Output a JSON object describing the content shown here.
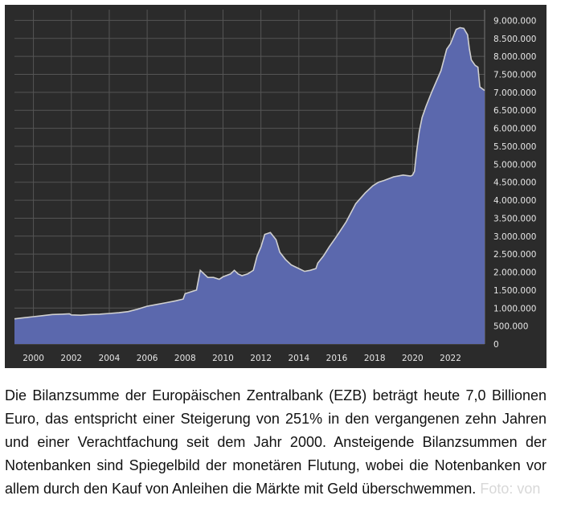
{
  "chart_data": {
    "type": "area",
    "title": "",
    "xlabel": "",
    "ylabel": "",
    "xlim": [
      1999.0,
      2023.8
    ],
    "ylim": [
      0,
      9300000
    ],
    "x_ticks": [
      "2000",
      "2002",
      "2004",
      "2006",
      "2008",
      "2010",
      "2012",
      "2014",
      "2016",
      "2018",
      "2020",
      "2022"
    ],
    "y_ticks": [
      "0",
      "500.000",
      "1.000.000",
      "1.500.000",
      "2.000.000",
      "2.500.000",
      "3.000.000",
      "3.500.000",
      "4.000.000",
      "4.500.000",
      "5.000.000",
      "5.500.000",
      "6.000.000",
      "6.500.000",
      "7.000.000",
      "7.500.000",
      "8.000.000",
      "8.500.000",
      "9.000.000"
    ],
    "grid": true,
    "y_axis_side": "right",
    "colors": {
      "background": "#2b2b2b",
      "fill": "#5b68ad",
      "line": "#d0d0d0",
      "grid": "#555555"
    },
    "series": [
      {
        "x": [
          1999.0,
          1999.5,
          2000.0,
          2000.5,
          2001.0,
          2001.5,
          2001.9,
          2002.0,
          2002.5,
          2003.0,
          2003.5,
          2004.0,
          2004.5,
          2005.0,
          2005.5,
          2006.0,
          2006.5,
          2007.0,
          2007.5,
          2007.9,
          2008.0,
          2008.3,
          2008.6,
          2008.8,
          2009.0,
          2009.2,
          2009.5,
          2009.8,
          2010.0,
          2010.4,
          2010.6,
          2010.8,
          2011.0,
          2011.3,
          2011.6,
          2011.8,
          2012.0,
          2012.2,
          2012.5,
          2012.8,
          2013.0,
          2013.3,
          2013.6,
          2014.0,
          2014.3,
          2014.6,
          2014.9,
          2015.0,
          2015.3,
          2015.6,
          2016.0,
          2016.5,
          2017.0,
          2017.5,
          2017.9,
          2018.2,
          2018.5,
          2019.0,
          2019.5,
          2019.9,
          2020.0,
          2020.1,
          2020.2,
          2020.35,
          2020.5,
          2020.7,
          2021.0,
          2021.5,
          2021.8,
          2022.0,
          2022.3,
          2022.5,
          2022.7,
          2022.9,
          2023.0,
          2023.1,
          2023.3,
          2023.45,
          2023.55,
          2023.8
        ],
        "values": [
          700000,
          730000,
          760000,
          790000,
          820000,
          830000,
          840000,
          810000,
          800000,
          820000,
          830000,
          850000,
          870000,
          900000,
          970000,
          1050000,
          1100000,
          1150000,
          1200000,
          1250000,
          1400000,
          1450000,
          1500000,
          2050000,
          1950000,
          1850000,
          1850000,
          1800000,
          1870000,
          1950000,
          2050000,
          1950000,
          1900000,
          1950000,
          2050000,
          2450000,
          2700000,
          3050000,
          3100000,
          2900000,
          2550000,
          2350000,
          2200000,
          2100000,
          2020000,
          2050000,
          2100000,
          2250000,
          2450000,
          2700000,
          3000000,
          3400000,
          3900000,
          4200000,
          4400000,
          4500000,
          4550000,
          4650000,
          4700000,
          4670000,
          4700000,
          4800000,
          5300000,
          5900000,
          6300000,
          6600000,
          7000000,
          7600000,
          8200000,
          8350000,
          8750000,
          8800000,
          8780000,
          8600000,
          8200000,
          7900000,
          7750000,
          7700000,
          7150000,
          7050000
        ]
      }
    ]
  },
  "caption": {
    "text": "Die Bilanzsumme der Europäischen Zentralbank (EZB) beträgt heute 7,0 Billionen Euro, das entspricht einer Steigerung von 251% in den vergangenen zehn Jahren und einer Verachtfachung seit dem Jahr 2000. Ansteigende Bilanzsummen der Notenbanken sind Spiegelbild der monetären Flutung, wobei die Notenbanken vor allem durch den Kauf von Anleihen die Märkte mit Geld überschwemmen.",
    "faded_tail": "Foto: von"
  }
}
